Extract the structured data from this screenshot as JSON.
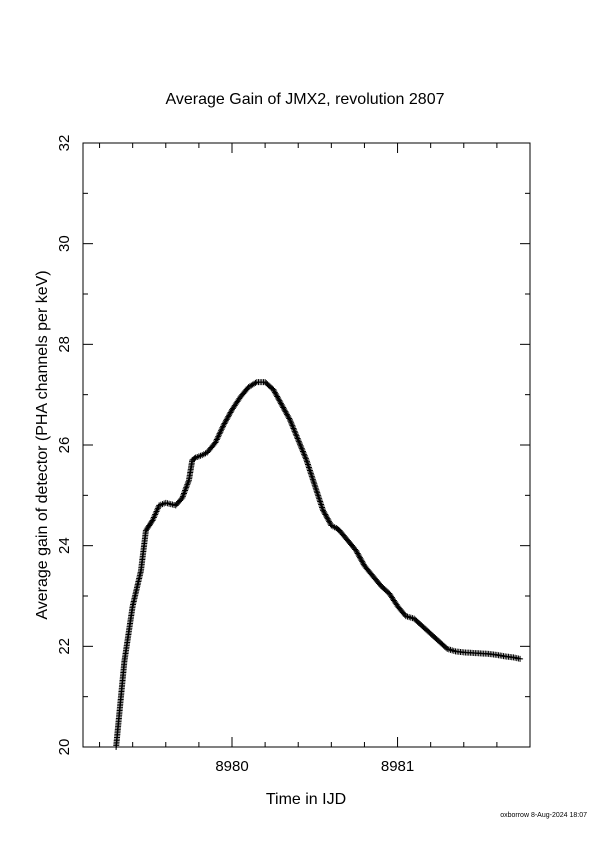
{
  "chart_data": {
    "type": "scatter",
    "marker": "plus",
    "title": "Average Gain of JMX2, revolution 2807",
    "xlabel": "Time in IJD",
    "ylabel": "Average gain of detector (PHA channels per keV)",
    "xlim": [
      8979.1,
      8981.8
    ],
    "ylim": [
      20,
      32
    ],
    "x_ticks": [
      8980,
      8981
    ],
    "x_tick_labels": [
      "8980",
      "8981"
    ],
    "x_minor_step": 0.2,
    "y_ticks": [
      20,
      22,
      24,
      26,
      28,
      30,
      32
    ],
    "y_tick_labels": [
      "20",
      "22",
      "24",
      "26",
      "28",
      "30",
      "32"
    ],
    "y_minor_step": 1,
    "grid": false,
    "legend": "none",
    "series": [
      {
        "color": "#000000",
        "x": [
          8979.3,
          8979.35,
          8979.4,
          8979.45,
          8979.48,
          8979.52,
          8979.56,
          8979.6,
          8979.66,
          8979.7,
          8979.74,
          8979.76,
          8979.78,
          8979.82,
          8979.85,
          8979.9,
          8979.95,
          8980.0,
          8980.05,
          8980.1,
          8980.15,
          8980.2,
          8980.25,
          8980.3,
          8980.35,
          8980.4,
          8980.45,
          8980.5,
          8980.55,
          8980.6,
          8980.63,
          8980.65,
          8980.7,
          8980.75,
          8980.8,
          8980.85,
          8980.9,
          8980.95,
          8981.0,
          8981.05,
          8981.1,
          8981.15,
          8981.2,
          8981.25,
          8981.3,
          8981.35,
          8981.4,
          8981.45,
          8981.5,
          8981.55,
          8981.6,
          8981.65,
          8981.7,
          8981.74
        ],
        "y": [
          20.0,
          21.7,
          22.8,
          23.5,
          24.3,
          24.5,
          24.8,
          24.85,
          24.8,
          24.95,
          25.3,
          25.7,
          25.75,
          25.8,
          25.85,
          26.05,
          26.4,
          26.7,
          26.95,
          27.15,
          27.25,
          27.25,
          27.1,
          26.8,
          26.5,
          26.1,
          25.7,
          25.2,
          24.7,
          24.4,
          24.35,
          24.3,
          24.1,
          23.9,
          23.6,
          23.4,
          23.2,
          23.05,
          22.8,
          22.6,
          22.55,
          22.4,
          22.25,
          22.1,
          21.95,
          21.9,
          21.88,
          21.87,
          21.86,
          21.85,
          21.83,
          21.8,
          21.78,
          21.75
        ]
      }
    ]
  },
  "footer": "oxborrow  8-Aug-2024 18:07"
}
